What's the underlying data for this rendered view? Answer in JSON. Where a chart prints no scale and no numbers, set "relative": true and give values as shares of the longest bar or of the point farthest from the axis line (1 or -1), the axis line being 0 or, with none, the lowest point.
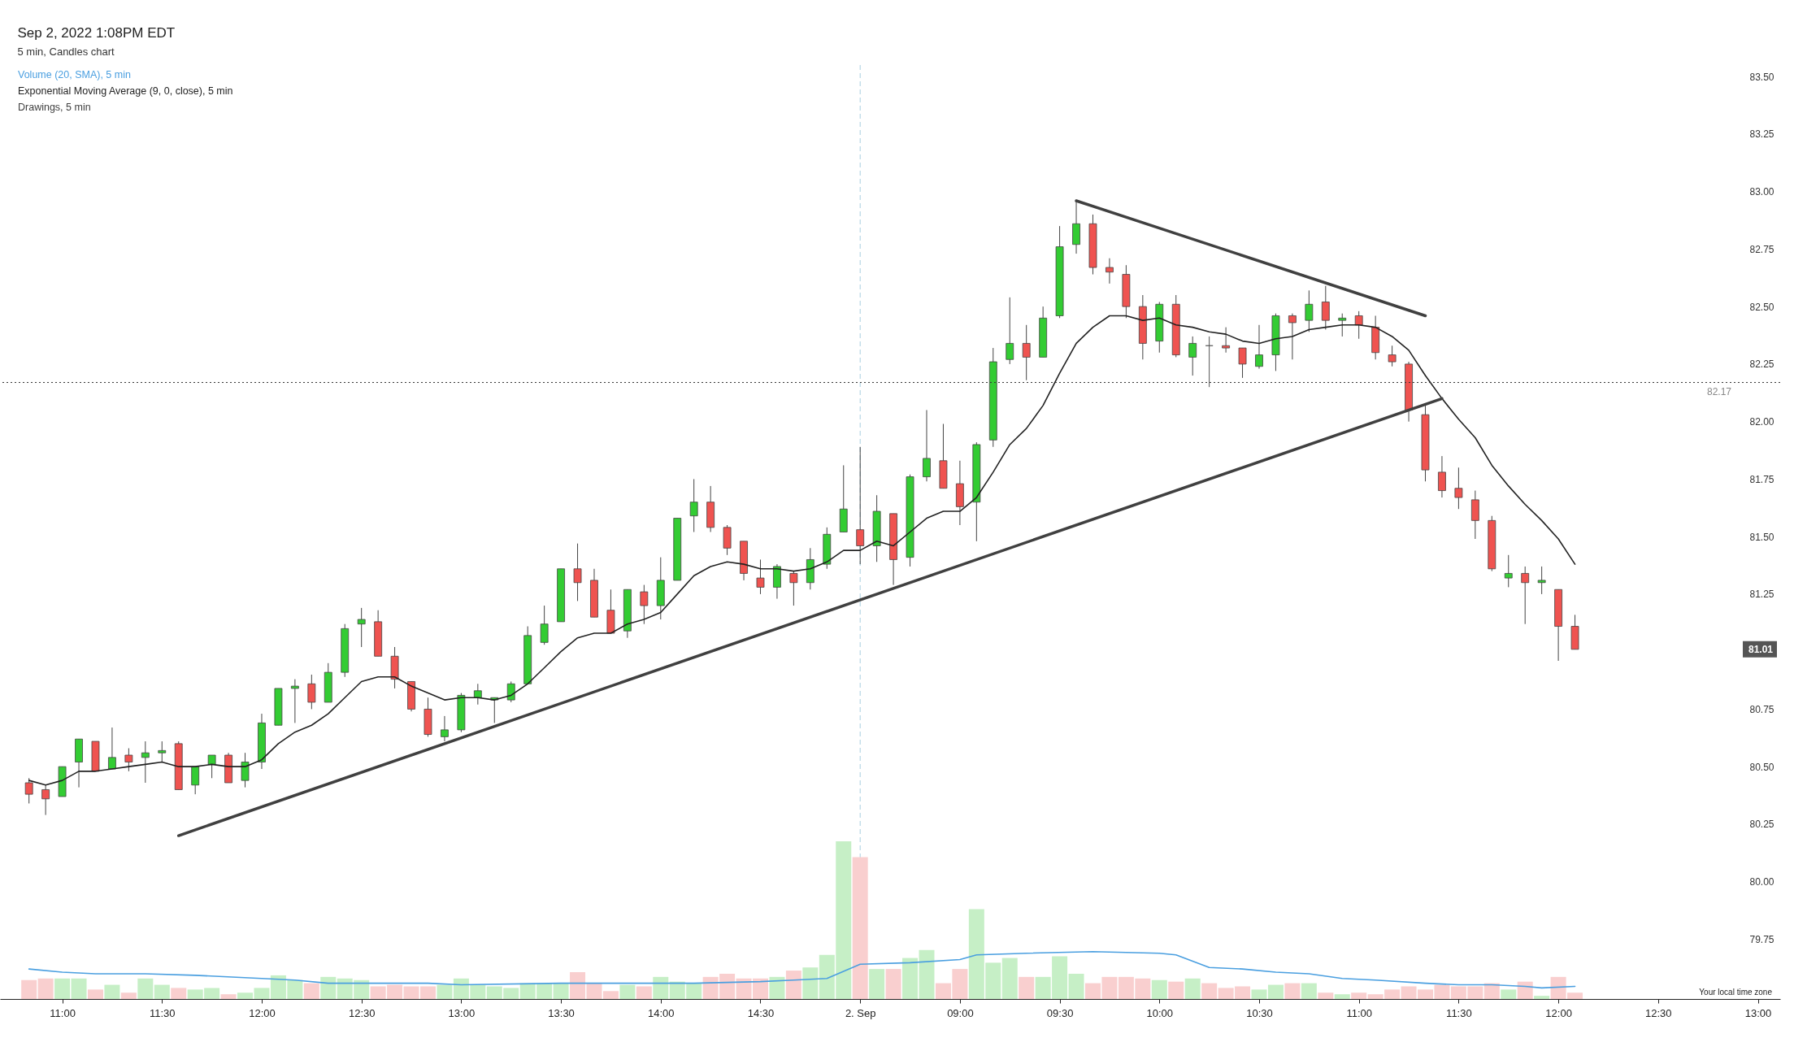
{
  "chart_data": [
    {
      "type": "candlestick",
      "title": "Sep 2, 2022 1:08PM EDT",
      "subtitle": "5 min, Candles chart",
      "categories": [
        null,
        null,
        "11:00",
        null,
        null,
        null,
        null,
        null,
        "11:30",
        null,
        null,
        null,
        null,
        null,
        "12:00",
        null,
        null,
        null,
        null,
        null,
        "12:30",
        null,
        null,
        null,
        null,
        null,
        "13:00",
        null,
        null,
        null,
        null,
        null,
        "13:30",
        null,
        null,
        null,
        null,
        null,
        "14:00",
        null,
        null,
        null,
        null,
        null,
        "14:30",
        null,
        null,
        null,
        null,
        null,
        "2. Sep",
        null,
        null,
        null,
        null,
        null,
        "09:00",
        null,
        null,
        null,
        null,
        null,
        "09:30",
        null,
        null,
        null,
        null,
        null,
        "10:00",
        null,
        null,
        null,
        null,
        null,
        "10:30",
        null,
        null,
        null,
        null,
        null,
        "11:00",
        null,
        null,
        null,
        null,
        null,
        "11:30",
        null,
        null,
        null,
        null,
        null,
        "12:00",
        null,
        null,
        null,
        null,
        null,
        "12:30",
        null,
        null,
        null,
        null,
        null,
        "13:00"
      ],
      "ohlc": [
        [
          80.43,
          80.45,
          80.34,
          80.38
        ],
        [
          80.4,
          80.42,
          80.29,
          80.36
        ],
        [
          80.37,
          80.5,
          80.37,
          80.5
        ],
        [
          80.52,
          80.62,
          80.41,
          80.62
        ],
        [
          80.61,
          80.61,
          80.48,
          80.48
        ],
        [
          80.49,
          80.67,
          80.49,
          80.54
        ],
        [
          80.55,
          80.58,
          80.48,
          80.52
        ],
        [
          80.54,
          80.61,
          80.43,
          80.56
        ],
        [
          80.56,
          80.61,
          80.52,
          80.57
        ],
        [
          80.6,
          80.61,
          80.4,
          80.4
        ],
        [
          80.42,
          80.5,
          80.38,
          80.5
        ],
        [
          80.51,
          80.55,
          80.45,
          80.55
        ],
        [
          80.55,
          80.56,
          80.43,
          80.43
        ],
        [
          80.44,
          80.56,
          80.41,
          80.52
        ],
        [
          80.52,
          80.73,
          80.49,
          80.69
        ],
        [
          80.68,
          80.84,
          80.68,
          80.84
        ],
        [
          80.84,
          80.88,
          80.69,
          80.85
        ],
        [
          80.86,
          80.9,
          80.75,
          80.78
        ],
        [
          80.78,
          80.95,
          80.78,
          80.91
        ],
        [
          80.91,
          81.12,
          80.89,
          81.1
        ],
        [
          81.12,
          81.19,
          81.02,
          81.14
        ],
        [
          81.13,
          81.18,
          80.98,
          80.98
        ],
        [
          80.98,
          81.02,
          80.84,
          80.88
        ],
        [
          80.87,
          80.87,
          80.74,
          80.75
        ],
        [
          80.75,
          80.8,
          80.63,
          80.64
        ],
        [
          80.63,
          80.72,
          80.61,
          80.66
        ],
        [
          80.66,
          80.82,
          80.65,
          80.81
        ],
        [
          80.8,
          80.86,
          80.77,
          80.83
        ],
        [
          80.79,
          80.8,
          80.69,
          80.8
        ],
        [
          80.79,
          80.87,
          80.78,
          80.86
        ],
        [
          80.86,
          81.11,
          80.86,
          81.07
        ],
        [
          81.04,
          81.2,
          81.03,
          81.12
        ],
        [
          81.13,
          81.36,
          81.13,
          81.36
        ],
        [
          81.36,
          81.47,
          81.22,
          81.3
        ],
        [
          81.31,
          81.36,
          81.15,
          81.15
        ],
        [
          81.18,
          81.27,
          81.08,
          81.08
        ],
        [
          81.09,
          81.27,
          81.06,
          81.27
        ],
        [
          81.26,
          81.29,
          81.12,
          81.2
        ],
        [
          81.2,
          81.41,
          81.14,
          81.31
        ],
        [
          81.31,
          81.58,
          81.31,
          81.58
        ],
        [
          81.59,
          81.75,
          81.52,
          81.65
        ],
        [
          81.65,
          81.72,
          81.52,
          81.54
        ],
        [
          81.54,
          81.55,
          81.42,
          81.45
        ],
        [
          81.48,
          81.48,
          81.31,
          81.34
        ],
        [
          81.32,
          81.4,
          81.25,
          81.28
        ],
        [
          81.28,
          81.38,
          81.23,
          81.37
        ],
        [
          81.34,
          81.35,
          81.2,
          81.3
        ],
        [
          81.3,
          81.45,
          81.27,
          81.4
        ],
        [
          81.38,
          81.54,
          81.36,
          81.51
        ],
        [
          81.52,
          81.81,
          81.52,
          81.62
        ],
        [
          81.53,
          81.89,
          81.38,
          81.46
        ],
        [
          81.46,
          81.68,
          81.39,
          81.61
        ],
        [
          81.6,
          81.6,
          81.29,
          81.4
        ],
        [
          81.41,
          81.77,
          81.37,
          81.76
        ],
        [
          81.76,
          82.05,
          81.74,
          81.84
        ],
        [
          81.83,
          81.99,
          81.71,
          81.71
        ],
        [
          81.73,
          81.83,
          81.55,
          81.63
        ],
        [
          81.65,
          81.91,
          81.48,
          81.9
        ],
        [
          81.92,
          82.32,
          81.89,
          82.26
        ],
        [
          82.27,
          82.54,
          82.25,
          82.34
        ],
        [
          82.34,
          82.42,
          82.18,
          82.28
        ],
        [
          82.28,
          82.5,
          82.28,
          82.45
        ],
        [
          82.46,
          82.85,
          82.45,
          82.76
        ],
        [
          82.77,
          82.96,
          82.73,
          82.86
        ],
        [
          82.86,
          82.9,
          82.64,
          82.67
        ],
        [
          82.67,
          82.71,
          82.6,
          82.65
        ],
        [
          82.64,
          82.68,
          82.45,
          82.5
        ],
        [
          82.5,
          82.55,
          82.27,
          82.34
        ],
        [
          82.35,
          82.52,
          82.3,
          82.51
        ],
        [
          82.51,
          82.55,
          82.28,
          82.29
        ],
        [
          82.28,
          82.37,
          82.2,
          82.34
        ],
        [
          82.33,
          82.37,
          82.15,
          82.33
        ],
        [
          82.33,
          82.41,
          82.3,
          82.32
        ],
        [
          82.32,
          82.32,
          82.19,
          82.25
        ],
        [
          82.24,
          82.42,
          82.23,
          82.29
        ],
        [
          82.29,
          82.47,
          82.22,
          82.46
        ],
        [
          82.46,
          82.47,
          82.27,
          82.43
        ],
        [
          82.44,
          82.57,
          82.39,
          82.51
        ],
        [
          82.52,
          82.59,
          82.4,
          82.44
        ],
        [
          82.44,
          82.47,
          82.37,
          82.45
        ],
        [
          82.46,
          82.48,
          82.36,
          82.42
        ],
        [
          82.41,
          82.46,
          82.27,
          82.3
        ],
        [
          82.29,
          82.33,
          82.24,
          82.26
        ],
        [
          82.25,
          82.26,
          82.0,
          82.05
        ],
        [
          82.03,
          82.07,
          81.74,
          81.79
        ],
        [
          81.78,
          81.85,
          81.67,
          81.7
        ],
        [
          81.71,
          81.8,
          81.62,
          81.67
        ],
        [
          81.66,
          81.7,
          81.49,
          81.57
        ],
        [
          81.57,
          81.59,
          81.35,
          81.36
        ],
        [
          81.32,
          81.42,
          81.28,
          81.34
        ],
        [
          81.34,
          81.37,
          81.12,
          81.3
        ],
        [
          81.3,
          81.37,
          81.25,
          81.31
        ],
        [
          81.27,
          81.27,
          80.96,
          81.11
        ],
        [
          81.11,
          81.16,
          81.01,
          81.01
        ],
        null,
        null,
        null,
        null,
        null,
        null,
        null,
        null,
        null,
        null,
        null
      ],
      "colors": [
        "#ef5350",
        "#ef5350",
        "#33cc33",
        "#33cc33",
        "#ef5350",
        "#33cc33",
        "#ef5350",
        "#33cc33",
        "#33cc33",
        "#ef5350",
        "#33cc33",
        "#33cc33",
        "#ef5350",
        "#33cc33",
        "#33cc33",
        "#33cc33",
        "#33cc33",
        "#ef5350",
        "#33cc33",
        "#33cc33",
        "#33cc33",
        "#ef5350",
        "#ef5350",
        "#ef5350",
        "#ef5350",
        "#33cc33",
        "#33cc33",
        "#33cc33",
        "#33cc33",
        "#33cc33",
        "#33cc33",
        "#33cc33",
        "#33cc33",
        "#ef5350",
        "#ef5350",
        "#ef5350",
        "#33cc33",
        "#ef5350",
        "#33cc33",
        "#33cc33",
        "#33cc33",
        "#ef5350",
        "#ef5350",
        "#ef5350",
        "#ef5350",
        "#33cc33",
        "#ef5350",
        "#33cc33",
        "#33cc33",
        "#33cc33",
        "#ef5350",
        "#33cc33",
        "#ef5350",
        "#33cc33",
        "#33cc33",
        "#ef5350",
        "#ef5350",
        "#33cc33",
        "#33cc33",
        "#33cc33",
        "#ef5350",
        "#33cc33",
        "#33cc33",
        "#33cc33",
        "#ef5350",
        "#ef5350",
        "#ef5350",
        "#ef5350",
        "#33cc33",
        "#ef5350",
        "#33cc33",
        "#555555",
        "#ef5350",
        "#ef5350",
        "#33cc33",
        "#33cc33",
        "#ef5350",
        "#33cc33",
        "#ef5350",
        "#33cc33",
        "#ef5350",
        "#ef5350",
        "#ef5350",
        "#ef5350",
        "#ef5350",
        "#ef5350",
        "#ef5350",
        "#ef5350",
        "#ef5350",
        "#33cc33",
        "#ef5350",
        "#33cc33",
        "#ef5350",
        "#ef5350",
        null,
        null,
        null,
        null,
        null,
        null,
        null,
        null,
        null,
        null,
        null
      ],
      "series": [
        {
          "name": "Exponential Moving Average (9, 0, close), 5 min",
          "type": "line",
          "color": "#222222",
          "values": [
            80.44,
            80.42,
            80.44,
            80.48,
            80.48,
            80.49,
            80.5,
            80.51,
            80.52,
            80.5,
            80.5,
            80.51,
            80.5,
            80.5,
            80.53,
            80.6,
            80.65,
            80.68,
            80.73,
            80.8,
            80.87,
            80.89,
            80.89,
            80.85,
            80.82,
            80.79,
            80.8,
            80.8,
            80.79,
            80.81,
            80.86,
            80.93,
            81.0,
            81.06,
            81.08,
            81.08,
            81.12,
            81.14,
            81.17,
            81.25,
            81.33,
            81.37,
            81.39,
            81.38,
            81.36,
            81.36,
            81.35,
            81.36,
            81.39,
            81.44,
            81.44,
            81.48,
            81.46,
            81.52,
            81.58,
            81.61,
            81.61,
            81.67,
            81.78,
            81.9,
            81.97,
            82.07,
            82.21,
            82.34,
            82.41,
            82.46,
            82.46,
            82.44,
            82.45,
            82.42,
            82.41,
            82.39,
            82.38,
            82.35,
            82.34,
            82.36,
            82.37,
            82.4,
            82.41,
            82.42,
            82.42,
            82.41,
            82.37,
            82.31,
            82.2,
            82.1,
            82.01,
            81.93,
            81.81,
            81.72,
            81.64,
            81.57,
            81.49,
            81.38,
            null,
            null,
            null,
            null,
            null,
            null,
            null,
            null,
            null,
            null,
            null
          ]
        },
        {
          "name": "Drawings, 5 min",
          "type": "line",
          "color": "#404040",
          "values": [
            null,
            null,
            null,
            null,
            null,
            null,
            null,
            null,
            null,
            80.2,
            null,
            null,
            null,
            null,
            null,
            null,
            null,
            null,
            null,
            null,
            null,
            null,
            null,
            null,
            null,
            null,
            null,
            null,
            null,
            null,
            null,
            null,
            null,
            null,
            null,
            null,
            null,
            null,
            null,
            null,
            null,
            null,
            null,
            null,
            null,
            null,
            null,
            null,
            null,
            null,
            null,
            null,
            null,
            null,
            null,
            null,
            null,
            null,
            null,
            null,
            null,
            null,
            null,
            null,
            null,
            null,
            null,
            null,
            null,
            null,
            null,
            null,
            null,
            null,
            null,
            null,
            null,
            null,
            null,
            null,
            null,
            null,
            null,
            null,
            null,
            82.1,
            null,
            null,
            null,
            null,
            null,
            null,
            null,
            null,
            null,
            null,
            null,
            null,
            null,
            null,
            null,
            null,
            null,
            null,
            null
          ]
        },
        {
          "type": "line",
          "color": "#404040",
          "values": [
            null,
            null,
            null,
            null,
            null,
            null,
            null,
            null,
            null,
            null,
            null,
            null,
            null,
            null,
            null,
            null,
            null,
            null,
            null,
            null,
            null,
            null,
            null,
            null,
            null,
            null,
            null,
            null,
            null,
            null,
            null,
            null,
            null,
            null,
            null,
            null,
            null,
            null,
            null,
            null,
            null,
            null,
            null,
            null,
            null,
            null,
            null,
            null,
            null,
            null,
            null,
            null,
            null,
            null,
            null,
            null,
            null,
            null,
            null,
            null,
            null,
            null,
            null,
            82.96,
            null,
            null,
            null,
            null,
            null,
            null,
            null,
            null,
            null,
            null,
            null,
            null,
            null,
            null,
            null,
            null,
            null,
            null,
            null,
            null,
            82.46,
            null,
            null,
            null,
            null,
            null,
            null,
            null,
            null,
            null,
            null,
            null,
            null,
            null,
            null,
            null,
            null,
            null,
            null,
            null,
            null
          ]
        }
      ],
      "ylim": [
        79.49,
        83.55
      ],
      "yticks": [
        {
          "value": 79.75,
          "label": "79.75"
        },
        {
          "value": 80,
          "label": "80.00"
        },
        {
          "value": 80.25,
          "label": "80.25"
        },
        {
          "value": 80.5,
          "label": "80.50"
        },
        {
          "value": 80.75,
          "label": "80.75"
        },
        {
          "value": 81.25,
          "label": "81.25"
        },
        {
          "value": 81.5,
          "label": "81.50"
        },
        {
          "value": 81.75,
          "label": "81.75"
        },
        {
          "value": 82,
          "label": "82.00"
        },
        {
          "value": 82.25,
          "label": "82.25"
        },
        {
          "value": 82.5,
          "label": "82.50"
        },
        {
          "value": 82.75,
          "label": "82.75"
        },
        {
          "value": 83,
          "label": "83.00"
        },
        {
          "value": 83.25,
          "label": "83.25"
        },
        {
          "value": 83.5,
          "label": "83.50"
        }
      ],
      "ref_lines": [
        {
          "axis": "y",
          "value": 82.17,
          "label": "82.17",
          "color": "#333333",
          "line_style": "dotted"
        },
        {
          "axis": "x",
          "value": "2. Sep",
          "color": "#a8cfe0",
          "line_style": "dashed"
        }
      ],
      "annotations": [
        "81.01",
        "Your local time zone"
      ],
      "tick_labels": "y",
      "legend": "top left"
    },
    {
      "type": "bar",
      "relative": true,
      "legend": "top left",
      "categories": [
        null,
        null,
        "11:00",
        null,
        null,
        null,
        null,
        null,
        "11:30",
        null,
        null,
        null,
        null,
        null,
        "12:00",
        null,
        null,
        null,
        null,
        null,
        "12:30",
        null,
        null,
        null,
        null,
        null,
        "13:00",
        null,
        null,
        null,
        null,
        null,
        "13:30",
        null,
        null,
        null,
        null,
        null,
        "14:00",
        null,
        null,
        null,
        null,
        null,
        "14:30",
        null,
        null,
        null,
        null,
        null,
        "2. Sep",
        null,
        null,
        null,
        null,
        null,
        "09:00",
        null,
        null,
        null,
        null,
        null,
        "09:30",
        null,
        null,
        null,
        null,
        null,
        "10:00",
        null,
        null,
        null,
        null,
        null,
        "10:30",
        null,
        null,
        null,
        null,
        null,
        "11:00",
        null,
        null,
        null,
        null,
        null,
        "11:30",
        null,
        null,
        null,
        null,
        null,
        "12:00",
        null,
        null,
        null,
        null,
        null,
        "12:30",
        null,
        null,
        null,
        null,
        null,
        "13:00"
      ],
      "series": [
        {
          "values": [
            0.12,
            0.13,
            0.13,
            0.13,
            0.06,
            0.09,
            0.04,
            0.13,
            0.09,
            0.07,
            0.06,
            0.07,
            0.03,
            0.04,
            0.07,
            0.15,
            0.12,
            0.1,
            0.14,
            0.13,
            0.12,
            0.08,
            0.09,
            0.08,
            0.08,
            0.09,
            0.13,
            0.09,
            0.08,
            0.07,
            0.1,
            0.1,
            0.1,
            0.17,
            0.1,
            0.05,
            0.09,
            0.08,
            0.14,
            0.11,
            0.1,
            0.14,
            0.16,
            0.13,
            0.13,
            0.14,
            0.18,
            0.2,
            0.28,
            1,
            0.9,
            0.19,
            0.19,
            0.26,
            0.31,
            0.1,
            0.19,
            0.57,
            0.23,
            0.26,
            0.14,
            0.14,
            0.27,
            0.16,
            0.1,
            0.14,
            0.14,
            0.13,
            0.12,
            0.11,
            0.13,
            0.1,
            0.07,
            0.08,
            0.06,
            0.09,
            0.1,
            0.1,
            0.04,
            0.03,
            0.04,
            0.03,
            0.06,
            0.08,
            0.06,
            0.09,
            0.08,
            0.08,
            0.1,
            0.06,
            0.11,
            0.02,
            0.14,
            0.04,
            null,
            null,
            null,
            null,
            null,
            null,
            null,
            null,
            null,
            null,
            null
          ],
          "colors": [
            "#f9cfcf",
            "#f9cfcf",
            "#c6efc6",
            "#c6efc6",
            "#f9cfcf",
            "#c6efc6",
            "#f9cfcf",
            "#c6efc6",
            "#c6efc6",
            "#f9cfcf",
            "#c6efc6",
            "#c6efc6",
            "#f9cfcf",
            "#c6efc6",
            "#c6efc6",
            "#c6efc6",
            "#c6efc6",
            "#f9cfcf",
            "#c6efc6",
            "#c6efc6",
            "#c6efc6",
            "#f9cfcf",
            "#f9cfcf",
            "#f9cfcf",
            "#f9cfcf",
            "#c6efc6",
            "#c6efc6",
            "#c6efc6",
            "#c6efc6",
            "#c6efc6",
            "#c6efc6",
            "#c6efc6",
            "#c6efc6",
            "#f9cfcf",
            "#f9cfcf",
            "#f9cfcf",
            "#c6efc6",
            "#f9cfcf",
            "#c6efc6",
            "#c6efc6",
            "#c6efc6",
            "#f9cfcf",
            "#f9cfcf",
            "#f9cfcf",
            "#f9cfcf",
            "#c6efc6",
            "#f9cfcf",
            "#c6efc6",
            "#c6efc6",
            "#c6efc6",
            "#f9cfcf",
            "#c6efc6",
            "#f9cfcf",
            "#c6efc6",
            "#c6efc6",
            "#f9cfcf",
            "#f9cfcf",
            "#c6efc6",
            "#c6efc6",
            "#c6efc6",
            "#f9cfcf",
            "#c6efc6",
            "#c6efc6",
            "#c6efc6",
            "#f9cfcf",
            "#f9cfcf",
            "#f9cfcf",
            "#f9cfcf",
            "#c6efc6",
            "#f9cfcf",
            "#c6efc6",
            "#f9cfcf",
            "#f9cfcf",
            "#f9cfcf",
            "#c6efc6",
            "#c6efc6",
            "#f9cfcf",
            "#c6efc6",
            "#f9cfcf",
            "#c6efc6",
            "#f9cfcf",
            "#f9cfcf",
            "#f9cfcf",
            "#f9cfcf",
            "#f9cfcf",
            "#f9cfcf",
            "#f9cfcf",
            "#f9cfcf",
            "#f9cfcf",
            "#c6efc6",
            "#f9cfcf",
            "#c6efc6",
            "#f9cfcf",
            "#f9cfcf",
            null,
            null,
            null,
            null,
            null,
            null,
            null,
            null,
            null,
            null,
            null
          ]
        },
        {
          "name": "Volume (20, SMA), 5 min",
          "type": "line",
          "color": "#4a9fe0",
          "values": [
            0.19,
            null,
            0.17,
            null,
            0.16,
            null,
            null,
            0.16,
            null,
            null,
            0.15,
            null,
            null,
            null,
            0.13,
            null,
            0.12,
            null,
            0.1,
            null,
            null,
            null,
            null,
            null,
            0.1,
            null,
            0.09,
            null,
            null,
            null,
            null,
            null,
            0.1,
            null,
            null,
            null,
            null,
            null,
            null,
            null,
            0.1,
            null,
            null,
            null,
            0.11,
            null,
            0.12,
            null,
            0.13,
            null,
            0.22,
            null,
            null,
            0.23,
            null,
            null,
            0.25,
            0.28,
            null,
            null,
            0.29,
            null,
            null,
            null,
            0.3,
            null,
            null,
            null,
            0.29,
            0.28,
            null,
            0.2,
            null,
            0.19,
            null,
            0.17,
            null,
            0.16,
            null,
            0.13,
            null,
            0.12,
            null,
            null,
            0.1,
            null,
            0.09,
            null,
            0.09,
            null,
            0.08,
            0.07,
            null,
            0.08,
            null,
            null,
            null,
            null,
            null,
            null,
            null,
            null,
            null,
            null,
            null
          ]
        }
      ]
    }
  ]
}
